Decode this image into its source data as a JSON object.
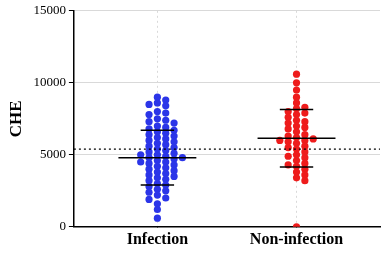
{
  "chart_data": {
    "type": "scatter",
    "y_label": "CHE",
    "categories": [
      "Infection",
      "Non-infection"
    ],
    "colors": [
      "#2b35e8",
      "#ee1c1c"
    ],
    "values": [
      [
        9000,
        8800,
        8600,
        8500,
        8400,
        8000,
        7900,
        7800,
        7500,
        7400,
        7300,
        7200,
        7000,
        6900,
        6800,
        6700,
        6600,
        6500,
        6400,
        6300,
        6200,
        6100,
        6000,
        5900,
        5800,
        5700,
        5600,
        5500,
        5400,
        5300,
        5200,
        5100,
        5000,
        5000,
        4900,
        4800,
        4800,
        4700,
        4600,
        4500,
        4500,
        4400,
        4300,
        4200,
        4100,
        4000,
        3900,
        3800,
        3700,
        3600,
        3500,
        3400,
        3300,
        3200,
        3000,
        2900,
        2800,
        2600,
        2500,
        2400,
        2200,
        2000,
        1900,
        1600,
        1200,
        600
      ],
      [
        10600,
        10000,
        9500,
        9000,
        8600,
        8300,
        8200,
        8000,
        7900,
        7800,
        7600,
        7400,
        7300,
        7200,
        7000,
        6900,
        6800,
        6600,
        6400,
        6300,
        6200,
        6100,
        6000,
        6000,
        5900,
        5800,
        5600,
        5500,
        5400,
        5200,
        5000,
        4900,
        4800,
        4600,
        4400,
        4300,
        4200,
        4000,
        3800,
        3600,
        3400,
        3200,
        0
      ]
    ],
    "mean": [
      4800,
      6150
    ],
    "sd": [
      1900,
      2000
    ],
    "reference_line": 5400,
    "ylim": [
      0,
      15000
    ],
    "yticks": [
      0,
      5000,
      10000,
      15000
    ],
    "grid": true,
    "marker": "circle"
  }
}
